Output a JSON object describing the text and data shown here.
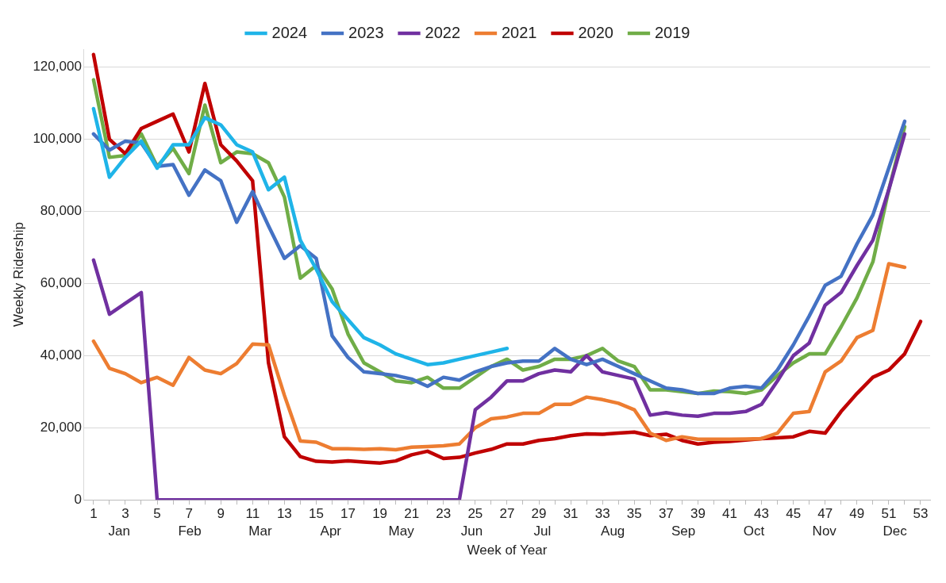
{
  "chart_data": {
    "type": "line",
    "xlabel": "Week of Year",
    "ylabel": "Weekly Ridership",
    "x": [
      1,
      2,
      3,
      4,
      5,
      6,
      7,
      8,
      9,
      10,
      11,
      12,
      13,
      14,
      15,
      16,
      17,
      18,
      19,
      20,
      21,
      22,
      23,
      24,
      25,
      26,
      27,
      28,
      29,
      30,
      31,
      32,
      33,
      34,
      35,
      36,
      37,
      38,
      39,
      40,
      41,
      42,
      43,
      44,
      45,
      46,
      47,
      48,
      49,
      50,
      51,
      52,
      53
    ],
    "xlim": [
      0.4,
      53.6
    ],
    "xticks": [
      1,
      {
        "value": 2,
        "label": null
      },
      3,
      {
        "value": 4,
        "label": null
      },
      5,
      {
        "value": 6,
        "label": null
      },
      7,
      {
        "value": 8,
        "label": null
      },
      9,
      {
        "value": 10,
        "label": null
      },
      11,
      {
        "value": 12,
        "label": null
      },
      13,
      {
        "value": 14,
        "label": null
      },
      15,
      {
        "value": 16,
        "label": null
      },
      17,
      {
        "value": 18,
        "label": null
      },
      19,
      {
        "value": 20,
        "label": null
      },
      21,
      {
        "value": 22,
        "label": null
      },
      23,
      {
        "value": 24,
        "label": null
      },
      25,
      {
        "value": 26,
        "label": null
      },
      27,
      {
        "value": 28,
        "label": null
      },
      29,
      {
        "value": 30,
        "label": null
      },
      31,
      {
        "value": 32,
        "label": null
      },
      33,
      {
        "value": 34,
        "label": null
      },
      35,
      {
        "value": 36,
        "label": null
      },
      37,
      {
        "value": 38,
        "label": null
      },
      39,
      {
        "value": 40,
        "label": null
      },
      41,
      {
        "value": 42,
        "label": null
      },
      43,
      {
        "value": 44,
        "label": null
      },
      45,
      {
        "value": 46,
        "label": null
      },
      47,
      {
        "value": 48,
        "label": null
      },
      49,
      {
        "value": 50,
        "label": null
      },
      51,
      {
        "value": 52,
        "label": null
      },
      53
    ],
    "annotations": [
      "Jan",
      "Feb",
      "Mar",
      "Apr",
      "May",
      "Jun",
      "Jul",
      "Aug",
      "Sep",
      "Oct",
      "Nov",
      "Dec"
    ],
    "ylim": [
      0,
      125000
    ],
    "yticks": [
      0,
      {
        "value": 20000,
        "label": "20,000"
      },
      {
        "value": 40000,
        "label": "40,000"
      },
      {
        "value": 60000,
        "label": "60,000"
      },
      {
        "value": 80000,
        "label": "80,000"
      },
      {
        "value": 100000,
        "label": "100,000"
      },
      {
        "value": 120000,
        "label": "120,000"
      }
    ],
    "grid": "y",
    "legend": "top",
    "marker": "none",
    "line_style": "solid",
    "series": [
      {
        "name": "2024",
        "color": "#1fb4e8",
        "values": [
          108500,
          89500,
          95000,
          99500,
          92000,
          98500,
          98500,
          106000,
          104000,
          98500,
          96500,
          86000,
          89500,
          72000,
          64000,
          55000,
          50000,
          45000,
          43000,
          40500,
          39000,
          37500,
          38000,
          39000,
          40000,
          41000,
          42000,
          null,
          null,
          null,
          null,
          null,
          null,
          null,
          null,
          null,
          null,
          null,
          null,
          null,
          null,
          null,
          null,
          null,
          null,
          null,
          null,
          null,
          null,
          null,
          null,
          null,
          null
        ]
      },
      {
        "name": "2023",
        "color": "#4472c4",
        "values": [
          101500,
          97000,
          99500,
          99000,
          92500,
          93000,
          84500,
          91500,
          88500,
          77000,
          85500,
          76000,
          67000,
          70500,
          67000,
          45500,
          39500,
          35500,
          35000,
          34500,
          33500,
          31500,
          34000,
          33200,
          35500,
          37000,
          38000,
          38500,
          38500,
          42000,
          39000,
          37500,
          39000,
          37000,
          35000,
          33000,
          31000,
          30500,
          29500,
          29500,
          31000,
          31500,
          31000,
          36000,
          43000,
          51000,
          59500,
          62000,
          71000,
          79000,
          92000,
          105000,
          null
        ]
      },
      {
        "name": "2022",
        "color": "#7030a0",
        "values": [
          66500,
          51500,
          54500,
          57500,
          0,
          0,
          0,
          0,
          0,
          0,
          0,
          0,
          0,
          0,
          0,
          0,
          0,
          0,
          0,
          0,
          0,
          0,
          0,
          0,
          25000,
          28500,
          33000,
          33000,
          35000,
          36000,
          35500,
          40000,
          35500,
          34500,
          33500,
          23500,
          24200,
          23500,
          23200,
          24000,
          24000,
          24500,
          26500,
          33000,
          40000,
          43500,
          54000,
          57500,
          65000,
          72000,
          86000,
          101500,
          null
        ]
      },
      {
        "name": "2021",
        "color": "#ed7d31",
        "values": [
          44000,
          36500,
          35000,
          32500,
          34000,
          31800,
          39500,
          36000,
          35000,
          37800,
          43200,
          43000,
          29000,
          16300,
          16000,
          14200,
          14200,
          14000,
          14200,
          13900,
          14600,
          14800,
          15000,
          15500,
          20000,
          22500,
          23000,
          24000,
          24000,
          26500,
          26500,
          28500,
          27800,
          26800,
          25000,
          18500,
          16500,
          17500,
          16800,
          16800,
          16800,
          16900,
          17000,
          18500,
          24000,
          24500,
          35500,
          38500,
          45000,
          47000,
          65500,
          64500,
          null
        ]
      },
      {
        "name": "2020",
        "color": "#c00000",
        "values": [
          123500,
          100000,
          96000,
          103000,
          105000,
          107000,
          96500,
          115500,
          98500,
          94000,
          88500,
          38000,
          17500,
          12000,
          10700,
          10500,
          10800,
          10500,
          10200,
          10800,
          12500,
          13500,
          11500,
          11800,
          13000,
          14000,
          15500,
          15500,
          16500,
          17000,
          17800,
          18300,
          18200,
          18500,
          18800,
          17800,
          18200,
          16500,
          15500,
          16000,
          16200,
          16600,
          17000,
          17200,
          17500,
          19000,
          18500,
          24500,
          29500,
          34000,
          36000,
          40500,
          49500
        ]
      },
      {
        "name": "2019",
        "color": "#70ad47",
        "values": [
          116500,
          95000,
          95500,
          101500,
          92500,
          97500,
          90500,
          109500,
          93500,
          96500,
          96000,
          93500,
          84000,
          61500,
          65000,
          58500,
          46000,
          38000,
          35500,
          33000,
          32500,
          34000,
          31000,
          31000,
          34000,
          37000,
          39000,
          36000,
          37000,
          39000,
          39000,
          40000,
          42000,
          38500,
          37000,
          30500,
          30500,
          30000,
          29500,
          30200,
          30000,
          29500,
          30500,
          34500,
          38000,
          40500,
          40500,
          48000,
          56000,
          66000,
          86000,
          103500,
          null
        ]
      }
    ]
  }
}
